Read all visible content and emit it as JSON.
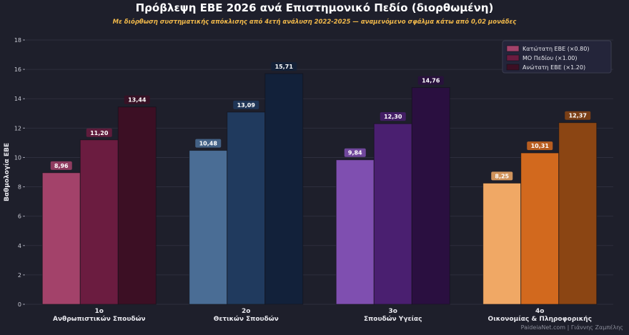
{
  "chart_data": {
    "type": "bar",
    "title": "Πρόβλεψη ΕΒΕ 2026 ανά Επιστημονικό Πεδίο (διορθωμένη)",
    "subtitle": "Με διόρθωση συστηματικής απόκλισης από 4ετή ανάλυση 2022-2025 — αναμενόμενο σφάλμα κάτω από 0,02 μονάδες",
    "ylabel": "Βαθμολογία ΕΒΕ",
    "xlabel": "",
    "ylim": [
      0,
      18
    ],
    "yticks": [
      0,
      2,
      4,
      6,
      8,
      10,
      12,
      14,
      16,
      18
    ],
    "grid": true,
    "legend_position": "top-right",
    "categories": [
      {
        "line1": "1ο",
        "line2": "Ανθρωπιστικών Σπουδών"
      },
      {
        "line1": "2ο",
        "line2": "Θετικών Σπουδών"
      },
      {
        "line1": "3ο",
        "line2": "Σπουδών Υγείας"
      },
      {
        "line1": "4ο",
        "line2": "Οικονομίας & Πληροφορικής"
      }
    ],
    "series": [
      {
        "name": "Κατώτατη ΕΒΕ (×0.80)",
        "values": [
          8.96,
          10.48,
          9.84,
          8.25
        ],
        "labels": [
          "8,96",
          "10,48",
          "9,84",
          "8,25"
        ]
      },
      {
        "name": "ΜΟ Πεδίου (×1.00)",
        "values": [
          11.2,
          13.09,
          12.3,
          10.31
        ],
        "labels": [
          "11,20",
          "13,09",
          "12,30",
          "10,31"
        ]
      },
      {
        "name": "Ανώτατη ΕΒΕ (×1.20)",
        "values": [
          13.44,
          15.71,
          14.76,
          12.37
        ],
        "labels": [
          "13,44",
          "15,71",
          "14,76",
          "12,37"
        ]
      }
    ],
    "colors": [
      [
        "#a3426a",
        "#6b1c40",
        "#3c0f24"
      ],
      [
        "#4a6d95",
        "#203a5e",
        "#12213a"
      ],
      [
        "#7f4fb0",
        "#4a1f70",
        "#2a0f40"
      ],
      [
        "#f0a865",
        "#d2691e",
        "#8b4513"
      ]
    ],
    "legend_colors": [
      "#a3426a",
      "#6b1c40",
      "#3c0f24"
    ]
  },
  "footer": "PaideiaNet.com  |  Γιάννης Ζαμπέλης"
}
